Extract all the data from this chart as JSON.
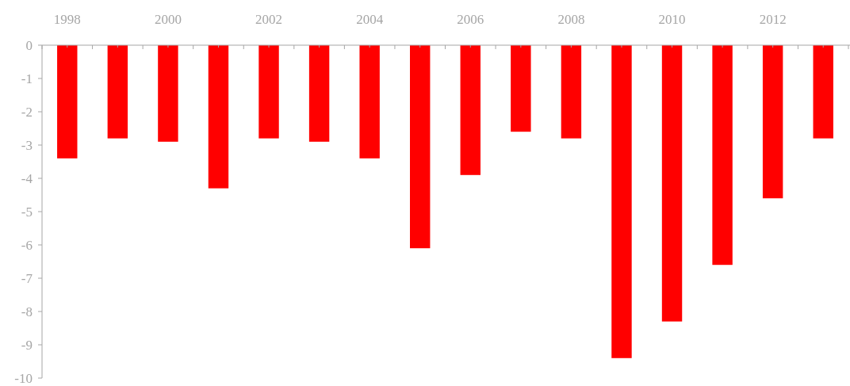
{
  "chart_data": {
    "type": "bar",
    "categories": [
      "1998",
      null,
      "2000",
      null,
      "2002",
      null,
      "2004",
      null,
      "2006",
      null,
      "2008",
      null,
      "2010",
      null,
      "2012",
      null
    ],
    "values": [
      -3.4,
      -2.8,
      -2.9,
      -4.3,
      -2.8,
      -2.9,
      -3.4,
      -6.1,
      -3.9,
      -2.6,
      -2.8,
      -9.4,
      -8.3,
      -6.6,
      -4.6,
      -2.8
    ],
    "color": "#ff0000",
    "ylim": [
      -10,
      0
    ],
    "yticks": [
      0,
      -1,
      -2,
      -3,
      -4,
      -5,
      -6,
      -7,
      -8,
      -9,
      -10
    ],
    "grid": false
  }
}
